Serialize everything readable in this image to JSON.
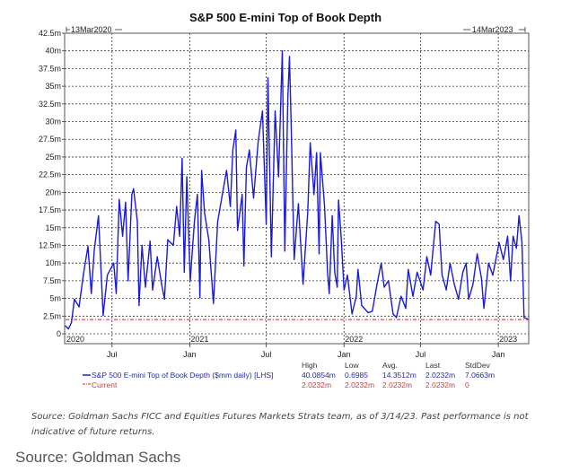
{
  "chart_data": {
    "type": "line",
    "title": "S&P 500 E-mini Top of Book Depth",
    "start_label": "13Mar2020",
    "end_label": "14Mar2023",
    "xlim": [
      "2020-03-13",
      "2023-03-14"
    ],
    "ylim": [
      0,
      42.5
    ],
    "grid": true,
    "y_ticks": [
      {
        "value": 0,
        "label": "0"
      },
      {
        "value": 2.5,
        "label": "2.5m"
      },
      {
        "value": 5,
        "label": "5m"
      },
      {
        "value": 7.5,
        "label": "7.5m"
      },
      {
        "value": 10,
        "label": "10m"
      },
      {
        "value": 12.5,
        "label": "12.5m"
      },
      {
        "value": 15,
        "label": "15m"
      },
      {
        "value": 17.5,
        "label": "17.5m"
      },
      {
        "value": 20,
        "label": "20m"
      },
      {
        "value": 22.5,
        "label": "22.5m"
      },
      {
        "value": 25,
        "label": "25m"
      },
      {
        "value": 27.5,
        "label": "27.5m"
      },
      {
        "value": 30,
        "label": "30m"
      },
      {
        "value": 32.5,
        "label": "32.5m"
      },
      {
        "value": 35,
        "label": "35m"
      },
      {
        "value": 37.5,
        "label": "37.5m"
      },
      {
        "value": 40,
        "label": "40m"
      },
      {
        "value": 42.5,
        "label": "42.5m"
      }
    ],
    "x_ticks": [
      {
        "date": "2020-07-01",
        "label": "Jul"
      },
      {
        "date": "2021-01-01",
        "label": "Jan"
      },
      {
        "date": "2021-07-01",
        "label": "Jul"
      },
      {
        "date": "2022-01-01",
        "label": "Jan"
      },
      {
        "date": "2022-07-01",
        "label": "Jul"
      },
      {
        "date": "2023-01-01",
        "label": "Jan"
      }
    ],
    "year_labels": [
      {
        "date": "2020-03-13",
        "label": "2020"
      },
      {
        "date": "2021-01-01",
        "label": "2021"
      },
      {
        "date": "2022-01-01",
        "label": "2022"
      },
      {
        "date": "2023-01-01",
        "label": "2023"
      }
    ],
    "series": [
      {
        "name": "S&P 500 E-mini Top of Book Depth ($mm daily) [LHS]",
        "color": "#1a1adb",
        "points": [
          [
            "2020-03-13",
            1.1
          ],
          [
            "2020-03-20",
            0.7
          ],
          [
            "2020-03-27",
            1.6
          ],
          [
            "2020-04-03",
            4.9
          ],
          [
            "2020-04-14",
            3.8
          ],
          [
            "2020-04-24",
            8.3
          ],
          [
            "2020-05-05",
            12.4
          ],
          [
            "2020-05-13",
            5.7
          ],
          [
            "2020-05-20",
            11.8
          ],
          [
            "2020-05-30",
            16.7
          ],
          [
            "2020-06-10",
            2.6
          ],
          [
            "2020-06-20",
            8.3
          ],
          [
            "2020-07-05",
            10.0
          ],
          [
            "2020-07-11",
            5.7
          ],
          [
            "2020-07-18",
            19.0
          ],
          [
            "2020-07-26",
            13.8
          ],
          [
            "2020-08-02",
            18.6
          ],
          [
            "2020-08-08",
            7.5
          ],
          [
            "2020-08-17",
            19.7
          ],
          [
            "2020-08-21",
            20.5
          ],
          [
            "2020-08-30",
            15.9
          ],
          [
            "2020-09-03",
            4.0
          ],
          [
            "2020-09-10",
            12.5
          ],
          [
            "2020-09-18",
            6.6
          ],
          [
            "2020-09-29",
            13.1
          ],
          [
            "2020-10-05",
            6.2
          ],
          [
            "2020-10-16",
            10.9
          ],
          [
            "2020-10-26",
            7.1
          ],
          [
            "2020-11-02",
            4.9
          ],
          [
            "2020-11-10",
            13.3
          ],
          [
            "2020-11-23",
            12.5
          ],
          [
            "2020-12-01",
            18.0
          ],
          [
            "2020-12-08",
            13.8
          ],
          [
            "2020-12-14",
            24.8
          ],
          [
            "2020-12-19",
            8.7
          ],
          [
            "2020-12-25",
            22.2
          ],
          [
            "2021-01-02",
            7.5
          ],
          [
            "2021-01-12",
            15.9
          ],
          [
            "2021-01-19",
            19.7
          ],
          [
            "2021-01-25",
            5.1
          ],
          [
            "2021-01-29",
            23.1
          ],
          [
            "2021-02-05",
            17.1
          ],
          [
            "2021-02-15",
            13.3
          ],
          [
            "2021-02-26",
            4.3
          ],
          [
            "2021-03-08",
            15.9
          ],
          [
            "2021-03-19",
            19.7
          ],
          [
            "2021-03-29",
            23.1
          ],
          [
            "2021-04-07",
            18.0
          ],
          [
            "2021-04-13",
            26.0
          ],
          [
            "2021-04-20",
            28.8
          ],
          [
            "2021-04-24",
            14.6
          ],
          [
            "2021-05-05",
            19.7
          ],
          [
            "2021-05-09",
            9.6
          ],
          [
            "2021-05-15",
            23.5
          ],
          [
            "2021-05-22",
            26.0
          ],
          [
            "2021-06-01",
            19.2
          ],
          [
            "2021-06-12",
            27.3
          ],
          [
            "2021-06-22",
            31.5
          ],
          [
            "2021-07-01",
            15.5
          ],
          [
            "2021-07-05",
            36.2
          ],
          [
            "2021-07-13",
            10.9
          ],
          [
            "2021-07-22",
            31.5
          ],
          [
            "2021-07-30",
            22.2
          ],
          [
            "2021-08-08",
            40.0
          ],
          [
            "2021-08-14",
            11.7
          ],
          [
            "2021-08-21",
            33.2
          ],
          [
            "2021-08-25",
            39.2
          ],
          [
            "2021-08-29",
            29.5
          ],
          [
            "2021-09-05",
            10.5
          ],
          [
            "2021-09-15",
            18.4
          ],
          [
            "2021-09-26",
            7.0
          ],
          [
            "2021-10-07",
            17.1
          ],
          [
            "2021-10-13",
            27.0
          ],
          [
            "2021-10-22",
            19.7
          ],
          [
            "2021-10-28",
            25.6
          ],
          [
            "2021-11-03",
            11.3
          ],
          [
            "2021-11-06",
            25.6
          ],
          [
            "2021-11-16",
            18.0
          ],
          [
            "2021-11-23",
            8.7
          ],
          [
            "2021-11-27",
            5.7
          ],
          [
            "2021-12-04",
            16.7
          ],
          [
            "2021-12-10",
            8.7
          ],
          [
            "2021-12-16",
            6.6
          ],
          [
            "2021-12-19",
            18.9
          ],
          [
            "2021-12-25",
            13.8
          ],
          [
            "2022-01-01",
            6.2
          ],
          [
            "2022-01-09",
            8.3
          ],
          [
            "2022-01-20",
            2.8
          ],
          [
            "2022-01-30",
            5.3
          ],
          [
            "2022-02-03",
            9.1
          ],
          [
            "2022-02-12",
            4.0
          ],
          [
            "2022-02-27",
            3.0
          ],
          [
            "2022-03-09",
            3.2
          ],
          [
            "2022-03-20",
            7.0
          ],
          [
            "2022-03-30",
            10.0
          ],
          [
            "2022-04-06",
            6.6
          ],
          [
            "2022-04-16",
            7.5
          ],
          [
            "2022-04-27",
            2.8
          ],
          [
            "2022-05-05",
            2.3
          ],
          [
            "2022-05-16",
            5.3
          ],
          [
            "2022-05-27",
            3.6
          ],
          [
            "2022-06-02",
            9.1
          ],
          [
            "2022-06-13",
            5.3
          ],
          [
            "2022-06-23",
            8.7
          ],
          [
            "2022-07-07",
            6.2
          ],
          [
            "2022-07-16",
            10.9
          ],
          [
            "2022-07-25",
            8.3
          ],
          [
            "2022-08-06",
            15.9
          ],
          [
            "2022-08-14",
            15.5
          ],
          [
            "2022-08-21",
            8.3
          ],
          [
            "2022-08-31",
            6.2
          ],
          [
            "2022-09-09",
            10.0
          ],
          [
            "2022-09-19",
            7.0
          ],
          [
            "2022-09-29",
            4.9
          ],
          [
            "2022-10-09",
            8.7
          ],
          [
            "2022-10-17",
            10.0
          ],
          [
            "2022-10-23",
            4.9
          ],
          [
            "2022-11-02",
            7.0
          ],
          [
            "2022-11-12",
            11.3
          ],
          [
            "2022-11-22",
            7.9
          ],
          [
            "2022-11-28",
            3.6
          ],
          [
            "2022-12-09",
            10.0
          ],
          [
            "2022-12-19",
            8.3
          ],
          [
            "2023-01-03",
            12.9
          ],
          [
            "2023-01-13",
            10.5
          ],
          [
            "2023-01-23",
            13.8
          ],
          [
            "2023-01-30",
            7.5
          ],
          [
            "2023-02-05",
            13.8
          ],
          [
            "2023-02-13",
            12.1
          ],
          [
            "2023-02-19",
            16.7
          ],
          [
            "2023-02-26",
            12.9
          ],
          [
            "2023-03-03",
            2.3
          ],
          [
            "2023-03-14",
            2.0232
          ]
        ]
      },
      {
        "name": "Current",
        "color": "#cc2222",
        "points": [
          [
            "2020-03-13",
            2.0232
          ],
          [
            "2023-03-14",
            2.0232
          ]
        ]
      }
    ],
    "legend": {
      "placement": "bottom",
      "headers": [
        "High",
        "Low",
        "Avg.",
        "Last",
        "StdDev"
      ],
      "rows": [
        {
          "label": "S&P 500 E-mini Top of Book Depth ($mm daily) [LHS]",
          "values": [
            "40.0854m",
            "0.6985",
            "14.3512m",
            "2.0232m",
            "7.0663m"
          ]
        },
        {
          "label": "Current",
          "values": [
            "2.0232m",
            "2.0232m",
            "2.0232m",
            "2.0232m",
            "0"
          ]
        }
      ]
    }
  },
  "footnote": "Source: Goldman Sachs FICC and Equities Futures Markets Strats team, as of 3/14/23. Past performance is not indicative of future returns.",
  "source": "Source: Goldman Sachs"
}
